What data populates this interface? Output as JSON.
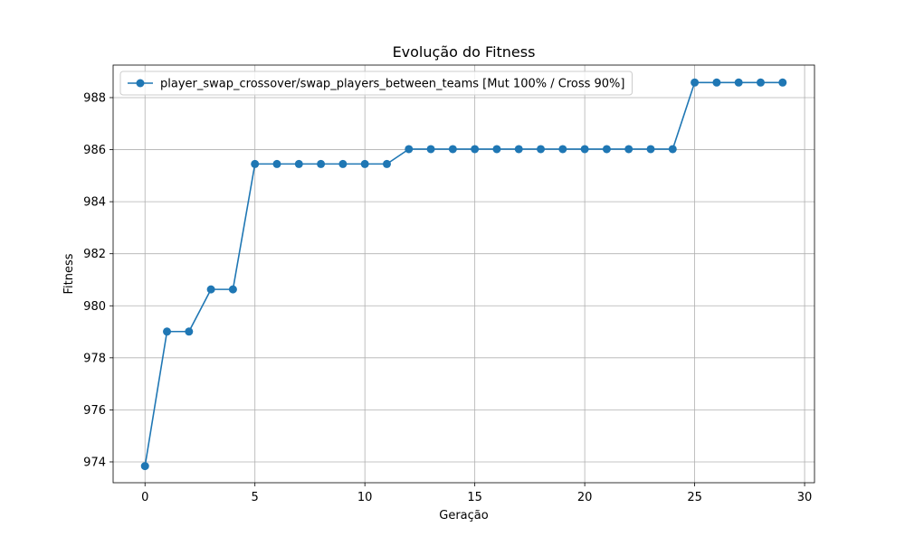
{
  "chart_data": {
    "type": "line",
    "title": "Evolução do Fitness",
    "xlabel": "Geração",
    "ylabel": "Fitness",
    "xlim": [
      -1.45,
      30.45
    ],
    "ylim": [
      973.2,
      989.25
    ],
    "xticks": [
      0,
      5,
      10,
      15,
      20,
      25,
      30
    ],
    "yticks": [
      974,
      976,
      978,
      980,
      982,
      984,
      986,
      988
    ],
    "grid": true,
    "legend_position": "top-left",
    "series": [
      {
        "name": "player_swap_crossover/swap_players_between_teams [Mut 100% / Cross 90%]",
        "color": "#1f77b4",
        "marker": "circle",
        "x": [
          0,
          1,
          2,
          3,
          4,
          5,
          6,
          7,
          8,
          9,
          10,
          11,
          12,
          13,
          14,
          15,
          16,
          17,
          18,
          19,
          20,
          21,
          22,
          23,
          24,
          25,
          26,
          27,
          28,
          29
        ],
        "y": [
          973.84,
          979.01,
          979.01,
          980.63,
          980.63,
          985.45,
          985.45,
          985.45,
          985.45,
          985.45,
          985.45,
          985.45,
          986.02,
          986.02,
          986.02,
          986.02,
          986.02,
          986.02,
          986.02,
          986.02,
          986.02,
          986.02,
          986.02,
          986.02,
          986.02,
          988.58,
          988.58,
          988.58,
          988.58,
          988.58
        ]
      }
    ]
  }
}
